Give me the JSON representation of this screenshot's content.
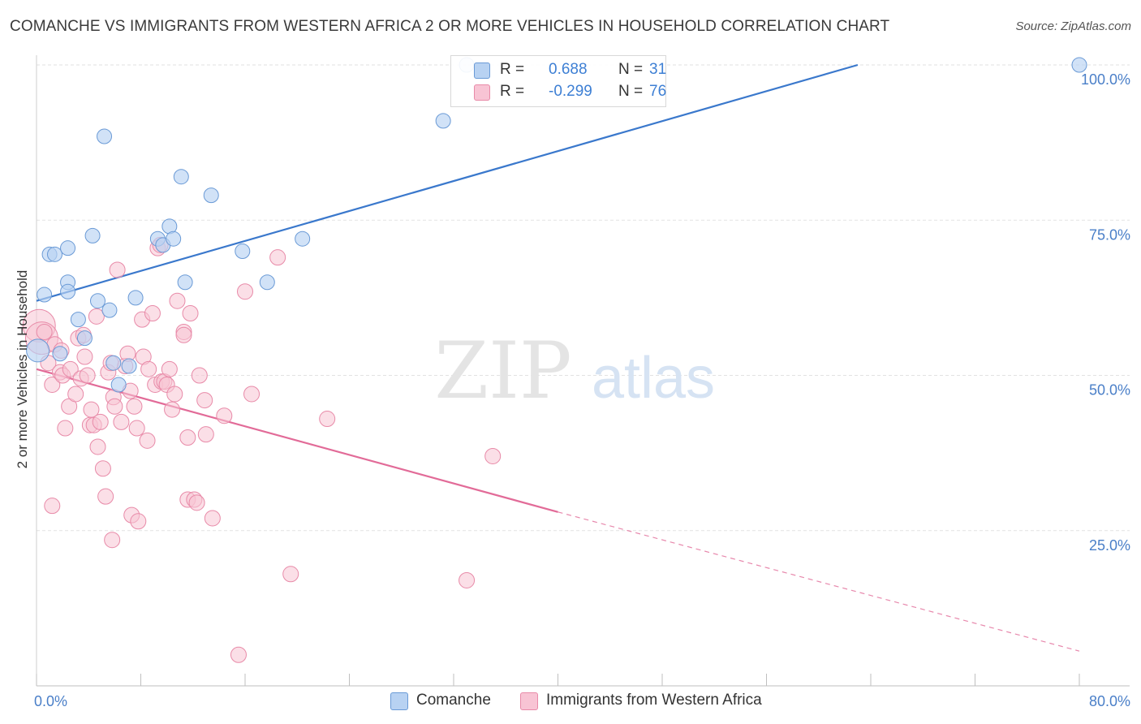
{
  "title": "COMANCHE VS IMMIGRANTS FROM WESTERN AFRICA 2 OR MORE VEHICLES IN HOUSEHOLD CORRELATION CHART",
  "source": "Source: ZipAtlas.com",
  "watermark": {
    "zip": "ZIP",
    "atlas": "atlas"
  },
  "legend": {
    "rows": [
      {
        "r_label": "R =",
        "r_value": "0.688",
        "n_label": "N =",
        "n_value": "31"
      },
      {
        "r_label": "R =",
        "r_value": "-0.299",
        "n_label": "N =",
        "n_value": "76"
      }
    ]
  },
  "bottom_legend": {
    "series1": "Comanche",
    "series2": "Immigrants from Western Africa"
  },
  "colors": {
    "blue_fill": "#b8d2f2",
    "blue_stroke": "#6a9ad6",
    "blue_line": "#3a78cc",
    "pink_fill": "#f8c4d4",
    "pink_stroke": "#e88aa8",
    "pink_line": "#e26b98",
    "grid": "#e2e2e2",
    "tick_text": "#4a7fc8"
  },
  "chart_data": {
    "type": "scatter",
    "title": "COMANCHE VS IMMIGRANTS FROM WESTERN AFRICA 2 OR MORE VEHICLES IN HOUSEHOLD CORRELATION CHART",
    "xlabel": "",
    "ylabel": "2 or more Vehicles in Household",
    "xlim": [
      0,
      80
    ],
    "ylim": [
      0,
      100
    ],
    "x_tick_labels": [
      "0.0%",
      "80.0%"
    ],
    "y_ticks": [
      25,
      50,
      75,
      100
    ],
    "y_tick_labels": [
      "25.0%",
      "50.0%",
      "75.0%",
      "100.0%"
    ],
    "grid": true,
    "series": [
      {
        "name": "Comanche",
        "r": 0.688,
        "n": 31,
        "trend": {
          "x0": 0,
          "y0": 62.0,
          "x1": 63.0,
          "y1": 100.0
        },
        "points": [
          [
            0.1,
            54.0
          ],
          [
            0.6,
            63.0
          ],
          [
            1.0,
            69.5
          ],
          [
            1.4,
            69.5
          ],
          [
            1.8,
            53.5
          ],
          [
            2.4,
            65.0
          ],
          [
            2.4,
            63.5
          ],
          [
            2.4,
            70.5
          ],
          [
            3.2,
            59.0
          ],
          [
            3.7,
            56.0
          ],
          [
            4.3,
            72.5
          ],
          [
            4.7,
            62.0
          ],
          [
            5.2,
            88.5
          ],
          [
            5.6,
            60.5
          ],
          [
            5.9,
            52.0
          ],
          [
            6.3,
            48.5
          ],
          [
            7.1,
            51.5
          ],
          [
            7.6,
            62.5
          ],
          [
            9.3,
            72.0
          ],
          [
            9.7,
            71.0
          ],
          [
            10.2,
            74.0
          ],
          [
            10.5,
            72.0
          ],
          [
            11.1,
            82.0
          ],
          [
            11.4,
            65.0
          ],
          [
            13.4,
            79.0
          ],
          [
            15.8,
            70.0
          ],
          [
            17.7,
            65.0
          ],
          [
            20.4,
            72.0
          ],
          [
            31.2,
            91.0
          ],
          [
            33.0,
            100.0
          ],
          [
            80.0,
            100.0
          ]
        ]
      },
      {
        "name": "Immigrants from Western Africa",
        "r": -0.299,
        "n": 76,
        "trend": {
          "x0": 0,
          "y0": 51.0,
          "x1": 40.0,
          "y1": 28.0,
          "dash_x1": 80.0,
          "dash_y1": 5.6
        },
        "points": [
          [
            0.2,
            58.0
          ],
          [
            0.4,
            56.0
          ],
          [
            0.6,
            57.0
          ],
          [
            0.9,
            52.0
          ],
          [
            1.2,
            48.5
          ],
          [
            1.2,
            29.0
          ],
          [
            1.4,
            55.0
          ],
          [
            1.8,
            50.5
          ],
          [
            1.9,
            54.0
          ],
          [
            2.0,
            50.0
          ],
          [
            2.2,
            41.5
          ],
          [
            2.5,
            45.0
          ],
          [
            2.6,
            51.0
          ],
          [
            3.0,
            47.0
          ],
          [
            3.2,
            56.0
          ],
          [
            3.4,
            49.5
          ],
          [
            3.7,
            53.0
          ],
          [
            3.9,
            50.0
          ],
          [
            3.6,
            56.5
          ],
          [
            4.1,
            42.0
          ],
          [
            4.2,
            44.5
          ],
          [
            4.4,
            42.0
          ],
          [
            4.6,
            59.5
          ],
          [
            4.7,
            38.5
          ],
          [
            4.9,
            42.5
          ],
          [
            5.1,
            35.0
          ],
          [
            5.3,
            30.5
          ],
          [
            5.5,
            50.5
          ],
          [
            5.7,
            52.0
          ],
          [
            5.9,
            46.5
          ],
          [
            5.8,
            23.5
          ],
          [
            6.0,
            45.0
          ],
          [
            6.2,
            67.0
          ],
          [
            6.5,
            42.5
          ],
          [
            6.8,
            51.5
          ],
          [
            7.0,
            53.5
          ],
          [
            7.2,
            47.5
          ],
          [
            7.3,
            27.5
          ],
          [
            7.5,
            45.0
          ],
          [
            7.7,
            41.5
          ],
          [
            7.8,
            26.5
          ],
          [
            8.1,
            59.0
          ],
          [
            8.2,
            53.0
          ],
          [
            8.5,
            39.5
          ],
          [
            8.6,
            51.0
          ],
          [
            8.9,
            60.0
          ],
          [
            9.1,
            48.5
          ],
          [
            9.3,
            70.5
          ],
          [
            9.5,
            71.0
          ],
          [
            9.6,
            49.0
          ],
          [
            9.8,
            49.0
          ],
          [
            10.0,
            48.5
          ],
          [
            10.2,
            51.0
          ],
          [
            10.4,
            44.5
          ],
          [
            10.6,
            47.0
          ],
          [
            10.8,
            62.0
          ],
          [
            11.3,
            57.0
          ],
          [
            11.3,
            56.5
          ],
          [
            11.6,
            30.0
          ],
          [
            11.6,
            40.0
          ],
          [
            11.8,
            60.0
          ],
          [
            12.1,
            30.0
          ],
          [
            12.3,
            29.5
          ],
          [
            12.5,
            50.0
          ],
          [
            12.9,
            46.0
          ],
          [
            13.0,
            40.5
          ],
          [
            13.5,
            27.0
          ],
          [
            14.4,
            43.5
          ],
          [
            15.5,
            5.0
          ],
          [
            16.0,
            63.5
          ],
          [
            16.5,
            47.0
          ],
          [
            18.5,
            69.0
          ],
          [
            19.5,
            18.0
          ],
          [
            22.3,
            43.0
          ],
          [
            33.0,
            17.0
          ],
          [
            35.0,
            37.0
          ]
        ]
      }
    ]
  }
}
